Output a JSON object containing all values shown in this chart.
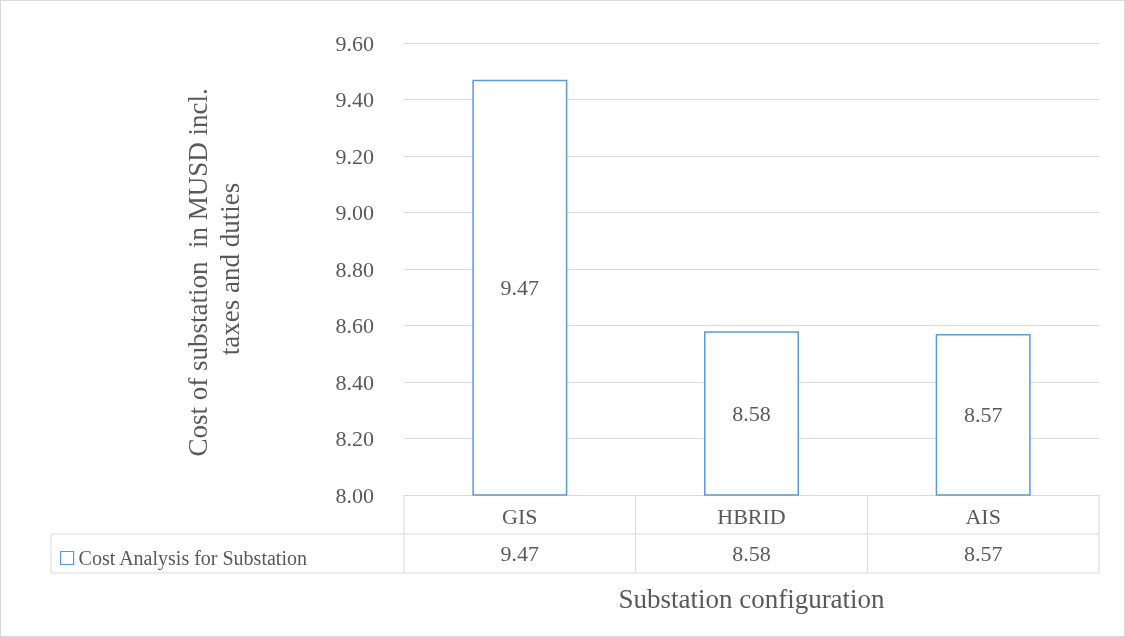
{
  "chart_data": {
    "type": "bar",
    "xlabel": "Substation configuration",
    "ylabel": "Cost of substation  in MUSD incl. taxes and duties",
    "categories": [
      "GIS",
      "HBRID",
      "AIS"
    ],
    "series": [
      {
        "name": "Cost Analysis for Substation",
        "color": "#5b9bd5",
        "values": [
          9.47,
          8.58,
          8.57
        ],
        "value_labels": [
          "9.47",
          "8.58",
          "8.57"
        ]
      }
    ],
    "ylim": [
      8,
      9.6
    ],
    "yticks": [
      {
        "value": 8,
        "label": "8.00"
      },
      {
        "value": 8.2,
        "label": "8.20"
      },
      {
        "value": 8.4,
        "label": "8.40"
      },
      {
        "value": 8.6,
        "label": "8.60"
      },
      {
        "value": 8.8,
        "label": "8.80"
      },
      {
        "value": 9,
        "label": "9.00"
      },
      {
        "value": 9.2,
        "label": "9.20"
      },
      {
        "value": 9.4,
        "label": "9.40"
      },
      {
        "value": 9.6,
        "label": "9.60"
      }
    ],
    "grid": "y",
    "legend": "bottom"
  }
}
